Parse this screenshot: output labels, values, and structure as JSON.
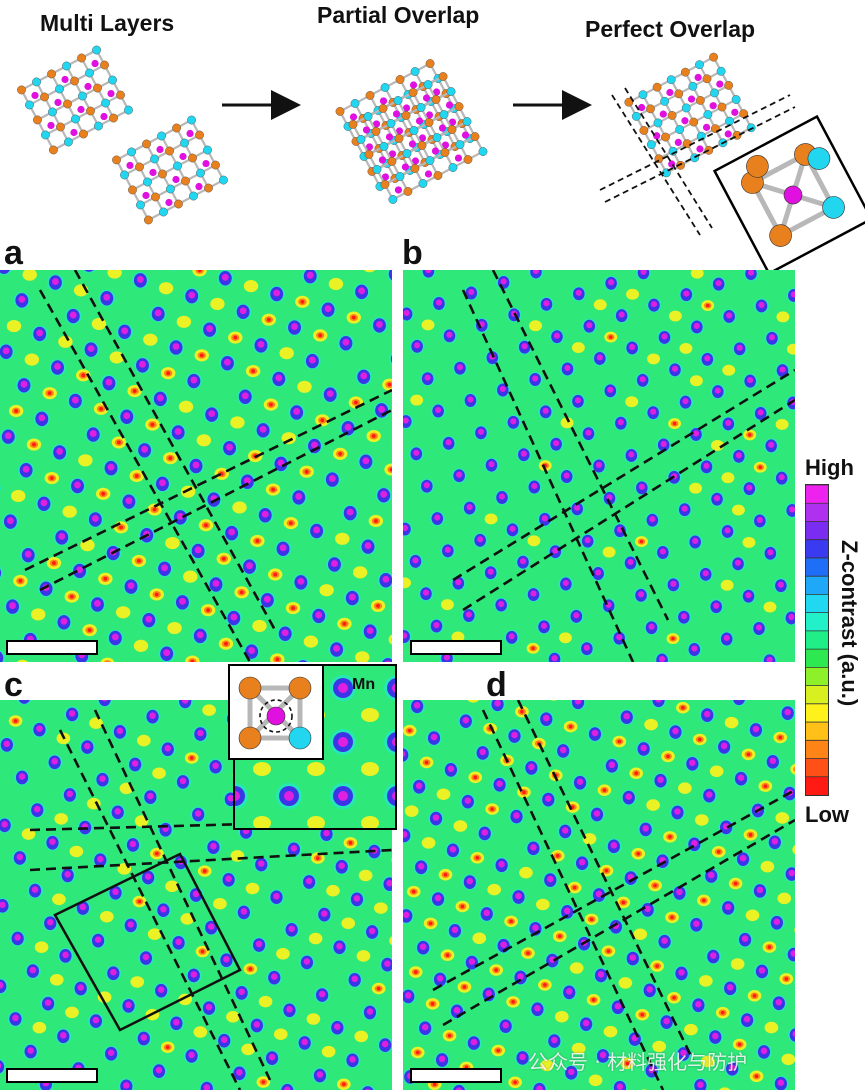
{
  "schematic": {
    "labels": [
      "Multi Layers",
      "Partial Overlap",
      "Perfect Overlap"
    ]
  },
  "panels": {
    "letters": [
      "a",
      "b",
      "c",
      "d"
    ]
  },
  "inset": {
    "atom_label": "Mn"
  },
  "colorbar": {
    "title": "Z-contrast (a.u.)",
    "high_label": "High",
    "low_label": "Low",
    "colors": [
      "#ee22ee",
      "#b030f0",
      "#7a2cf0",
      "#3a3af0",
      "#1e6ef8",
      "#1fa8f8",
      "#20d8f0",
      "#22f0c8",
      "#20ef88",
      "#2de850",
      "#8ef028",
      "#d8f020",
      "#fff21c",
      "#ffc018",
      "#ff8418",
      "#ff5018",
      "#ff1a14"
    ]
  },
  "atoms": {
    "orange": "#e8801e",
    "cyan": "#22d6f0",
    "magenta": "#e010e0",
    "bond": "#b8b8b8"
  },
  "watermark": {
    "text": "公众号 · 材料强化与防护"
  }
}
